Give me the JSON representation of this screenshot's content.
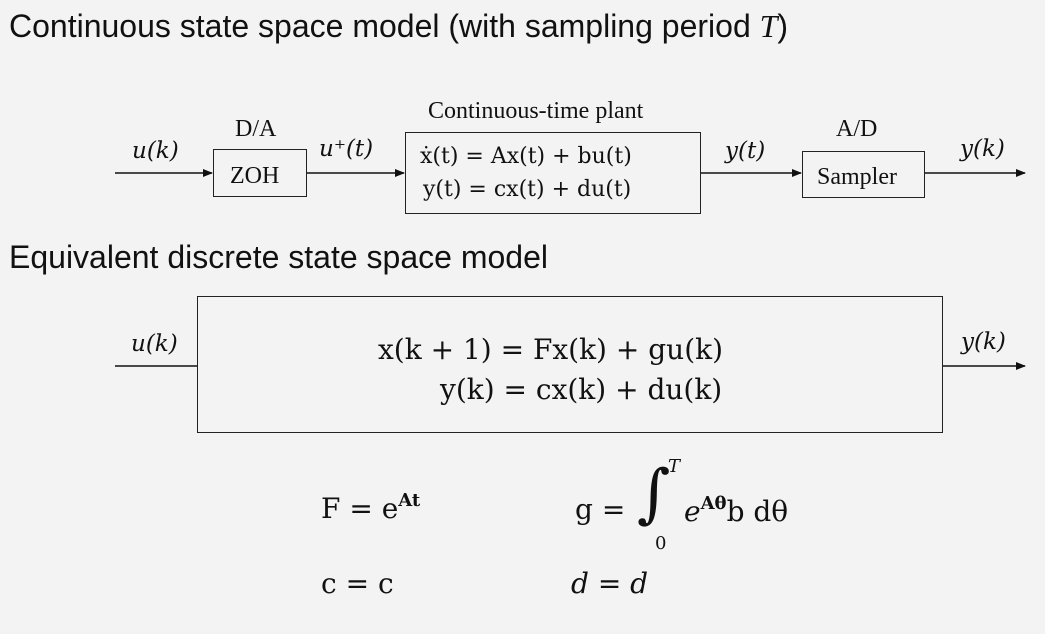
{
  "headings": {
    "continuous_text": "Continuous state space model (with sampling period ",
    "continuous_T": "T",
    "continuous_close": ")",
    "discrete": "Equivalent discrete state space model"
  },
  "continuous": {
    "input": "u(k)",
    "da_label": "D/A",
    "zoh": "ZOH",
    "zoh_output": "u⁺(t)",
    "plant_title": "Continuous-time plant",
    "plant_eq1": "ẋ(t) = Ax(t) + bu(t)",
    "plant_eq2": "y(t) = cx(t) + du(t)",
    "plant_output": "y(t)",
    "ad_label": "A/D",
    "sampler": "Sampler",
    "output": "y(k)"
  },
  "discrete": {
    "input": "u(k)",
    "eq1": "x(k + 1) = Fx(k) + gu(k)",
    "eq2": "y(k) = cx(k) + du(k)",
    "output": "y(k)"
  },
  "formulas": {
    "F_lhs": "F = e",
    "F_exp": "At",
    "g_lhs": "g =",
    "integral_sign": "∫",
    "integral_upper": "T",
    "integral_lower": "0",
    "g_integrand_base": "e",
    "g_integrand_exp": "Aθ",
    "g_integrand_tail": "b dθ",
    "c_eq": "c = c",
    "d_eq": "d = d"
  }
}
